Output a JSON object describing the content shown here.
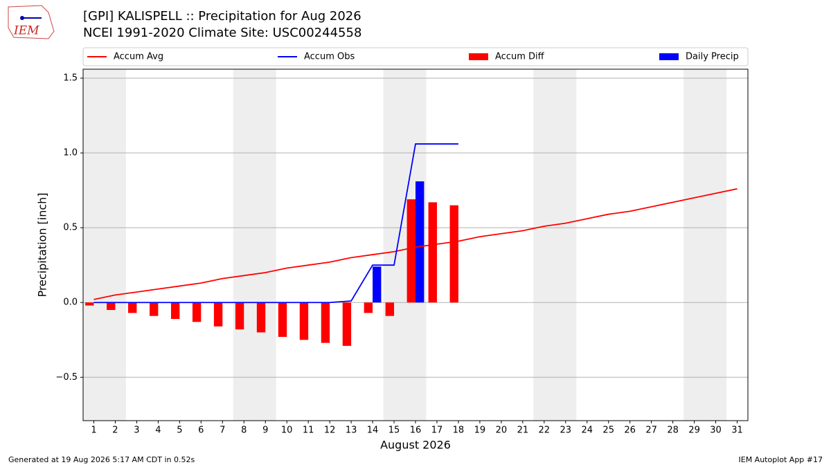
{
  "chart_data": {
    "type": "bar",
    "logo": "IEM",
    "title": "[GPI] KALISPELL :: Precipitation for Aug 2026",
    "subtitle": "NCEI 1991-2020 Climate Site: USC00244558",
    "xlabel": "August 2026",
    "ylabel": "Precipitation [inch]",
    "footer_left": "Generated at 19 Aug 2026 5:17 AM CDT in 0.52s",
    "footer_right": "IEM Autoplot App #17",
    "x": [
      1,
      2,
      3,
      4,
      5,
      6,
      7,
      8,
      9,
      10,
      11,
      12,
      13,
      14,
      15,
      16,
      17,
      18,
      19,
      20,
      21,
      22,
      23,
      24,
      25,
      26,
      27,
      28,
      29,
      30,
      31
    ],
    "xlim": [
      0.5,
      31.5
    ],
    "xticks": [
      1,
      2,
      3,
      4,
      5,
      6,
      7,
      8,
      9,
      10,
      11,
      12,
      13,
      14,
      15,
      16,
      17,
      18,
      19,
      20,
      21,
      22,
      23,
      24,
      25,
      26,
      27,
      28,
      29,
      30,
      31
    ],
    "ylim": [
      -0.79,
      1.56
    ],
    "yticks": [
      {
        "value": -0.5,
        "label": "−0.5"
      },
      {
        "value": 0,
        "label": "0.0"
      },
      {
        "value": 0.5,
        "label": "0.5"
      },
      {
        "value": 1,
        "label": "1.0"
      },
      {
        "value": 1.5,
        "label": "1.5"
      }
    ],
    "grid": true,
    "legend": "top",
    "series": [
      {
        "name": "Accum Avg",
        "type": "line",
        "color": "#ff0000",
        "values": [
          0.02,
          0.05,
          0.07,
          0.09,
          0.11,
          0.13,
          0.16,
          0.18,
          0.2,
          0.23,
          0.25,
          0.27,
          0.3,
          0.32,
          0.34,
          0.37,
          0.39,
          0.41,
          0.44,
          0.46,
          0.48,
          0.51,
          0.53,
          0.56,
          0.59,
          0.61,
          0.64,
          0.67,
          0.7,
          0.73,
          0.76
        ]
      },
      {
        "name": "Accum Obs",
        "type": "line",
        "color": "#0000ff",
        "values": [
          0,
          0,
          0,
          0,
          0,
          0,
          0,
          0,
          0,
          0,
          0,
          0,
          0.01,
          0.25,
          0.25,
          1.06,
          1.06,
          1.06,
          null,
          null,
          null,
          null,
          null,
          null,
          null,
          null,
          null,
          null,
          null,
          null,
          null
        ]
      },
      {
        "name": "Accum Diff",
        "type": "bar",
        "color": "#ff0000",
        "values": [
          -0.02,
          -0.05,
          -0.07,
          -0.09,
          -0.11,
          -0.13,
          -0.16,
          -0.18,
          -0.2,
          -0.23,
          -0.25,
          -0.27,
          -0.29,
          -0.07,
          -0.09,
          0.69,
          0.67,
          0.65,
          null,
          null,
          null,
          null,
          null,
          null,
          null,
          null,
          null,
          null,
          null,
          null,
          null
        ]
      },
      {
        "name": "Daily Precip",
        "type": "bar",
        "color": "#0000ff",
        "values": [
          0,
          0,
          0,
          0,
          0,
          0,
          0,
          0,
          0,
          0,
          0,
          0,
          0,
          0.24,
          0,
          0.81,
          0,
          0,
          null,
          null,
          null,
          null,
          null,
          null,
          null,
          null,
          null,
          null,
          null,
          null,
          null
        ]
      }
    ]
  }
}
